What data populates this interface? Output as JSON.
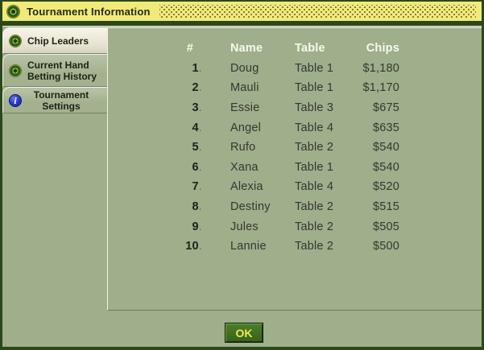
{
  "window": {
    "title": "Tournament Information"
  },
  "sidebar": {
    "tabs": [
      {
        "line1": "Chip Leaders",
        "line2": "",
        "icon": "dd-poker-chip-icon",
        "selected": true
      },
      {
        "line1": "Current Hand",
        "line2": "Betting History",
        "icon": "dd-poker-chip-icon",
        "selected": false
      },
      {
        "line1": "Tournament",
        "line2": "Settings",
        "icon": "info-icon",
        "icon_glyph": "i",
        "selected": false
      }
    ]
  },
  "table": {
    "columns": [
      "#",
      "Name",
      "Table",
      "Chips"
    ],
    "rows": [
      {
        "rank": "1.",
        "name": "Doug",
        "table": "Table 1",
        "chips": "$1,180"
      },
      {
        "rank": "2.",
        "name": "Mauli",
        "table": "Table 1",
        "chips": "$1,170"
      },
      {
        "rank": "3.",
        "name": "Essie",
        "table": "Table 3",
        "chips": "$675"
      },
      {
        "rank": "4.",
        "name": "Angel",
        "table": "Table 4",
        "chips": "$635"
      },
      {
        "rank": "5.",
        "name": "Rufo",
        "table": "Table 2",
        "chips": "$540"
      },
      {
        "rank": "6.",
        "name": "Xana",
        "table": "Table 1",
        "chips": "$540"
      },
      {
        "rank": "7.",
        "name": "Alexia",
        "table": "Table 4",
        "chips": "$520"
      },
      {
        "rank": "8.",
        "name": "Destiny",
        "table": "Table 2",
        "chips": "$515"
      },
      {
        "rank": "9.",
        "name": "Jules",
        "table": "Table 2",
        "chips": "$505"
      },
      {
        "rank": "10.",
        "name": "Lannie",
        "table": "Table 2",
        "chips": "$500"
      }
    ]
  },
  "footer": {
    "ok_label": "OK"
  },
  "colors": {
    "title_bar_bg": "#f1ea7b",
    "title_text": "#232d13",
    "frame": "#2a481b",
    "body_bg": "#9fae8b",
    "selected_tab_bg": "#e6e2d0",
    "tab_text": "#1d2214",
    "table_header_text": "#f8f8ee",
    "table_text": "#343830",
    "ok_bg": "#376119",
    "ok_text": "#e9e957"
  }
}
